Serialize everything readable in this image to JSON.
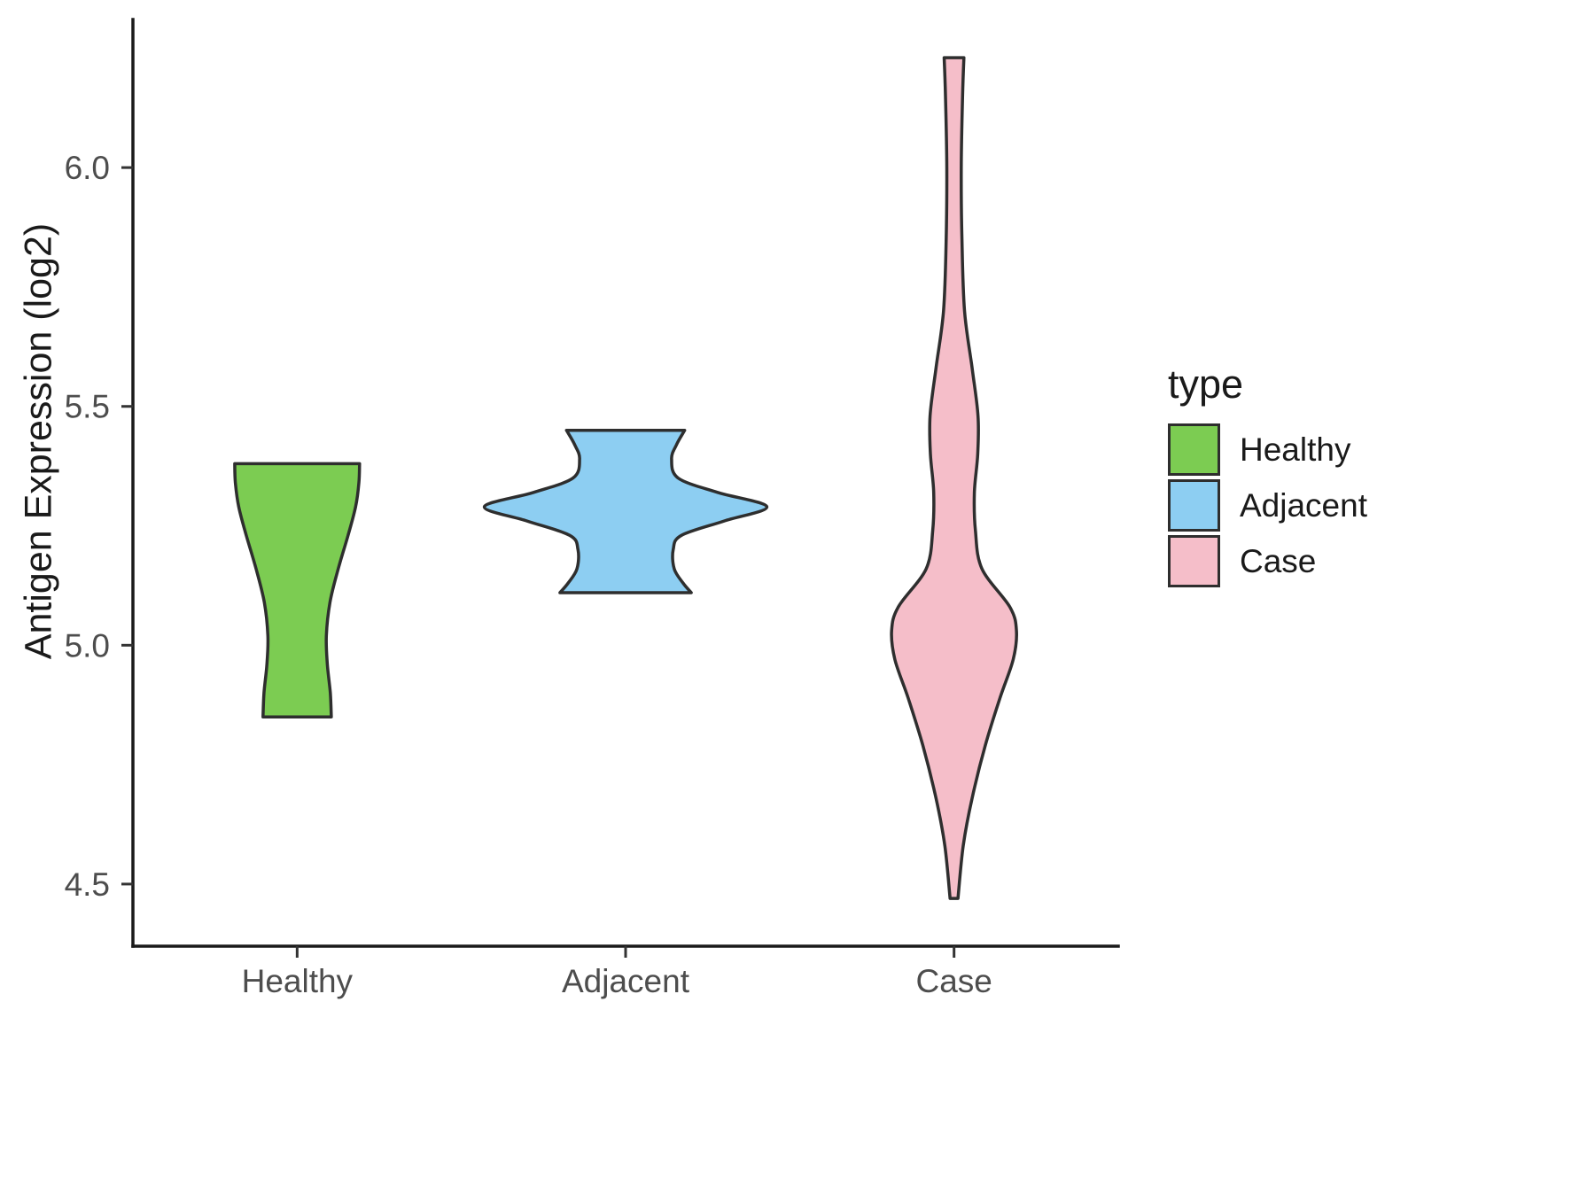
{
  "chart_data": {
    "type": "violin",
    "title": "",
    "xlabel": "",
    "ylabel": "Antigen Expression (log2)",
    "categories": [
      "Healthy",
      "Adjacent",
      "Case"
    ],
    "ylim": [
      4.37,
      6.31
    ],
    "yticks": [
      {
        "value": 4.5,
        "label": "4.5"
      },
      {
        "value": 5.0,
        "label": "5.0"
      },
      {
        "value": 5.5,
        "label": "5.5"
      },
      {
        "value": 6.0,
        "label": "6.0"
      }
    ],
    "grid": false,
    "outline_color": "#2e2e2e",
    "legend": {
      "title": "type",
      "position": "right",
      "entries": [
        {
          "label": "Healthy",
          "color": "#7CCC52"
        },
        {
          "label": "Adjacent",
          "color": "#8DCEF2"
        },
        {
          "label": "Case",
          "color": "#F5BEC9"
        }
      ]
    },
    "series": [
      {
        "name": "Healthy",
        "color": "#7CCC52",
        "value_range": [
          4.85,
          5.38
        ],
        "profile": [
          [
            5.38,
            0.19
          ],
          [
            5.34,
            0.188
          ],
          [
            5.29,
            0.178
          ],
          [
            5.23,
            0.155
          ],
          [
            5.16,
            0.125
          ],
          [
            5.09,
            0.1
          ],
          [
            5.02,
            0.089
          ],
          [
            4.96,
            0.092
          ],
          [
            4.9,
            0.101
          ],
          [
            4.85,
            0.104
          ]
        ]
      },
      {
        "name": "Adjacent",
        "color": "#8DCEF2",
        "value_range": [
          5.11,
          5.45
        ],
        "profile": [
          [
            5.45,
            0.18
          ],
          [
            5.42,
            0.155
          ],
          [
            5.39,
            0.14
          ],
          [
            5.35,
            0.16
          ],
          [
            5.32,
            0.28
          ],
          [
            5.29,
            0.43
          ],
          [
            5.26,
            0.3
          ],
          [
            5.23,
            0.17
          ],
          [
            5.2,
            0.145
          ],
          [
            5.16,
            0.148
          ],
          [
            5.13,
            0.175
          ],
          [
            5.11,
            0.2
          ]
        ]
      },
      {
        "name": "Case",
        "color": "#F5BEC9",
        "value_range": [
          4.47,
          6.23
        ],
        "profile": [
          [
            6.23,
            0.03
          ],
          [
            6.15,
            0.026
          ],
          [
            6.0,
            0.022
          ],
          [
            5.85,
            0.024
          ],
          [
            5.7,
            0.032
          ],
          [
            5.58,
            0.055
          ],
          [
            5.48,
            0.073
          ],
          [
            5.4,
            0.072
          ],
          [
            5.32,
            0.062
          ],
          [
            5.24,
            0.065
          ],
          [
            5.16,
            0.085
          ],
          [
            5.08,
            0.17
          ],
          [
            5.03,
            0.19
          ],
          [
            4.97,
            0.18
          ],
          [
            4.89,
            0.14
          ],
          [
            4.79,
            0.095
          ],
          [
            4.68,
            0.055
          ],
          [
            4.58,
            0.028
          ],
          [
            4.47,
            0.012
          ]
        ]
      }
    ]
  }
}
